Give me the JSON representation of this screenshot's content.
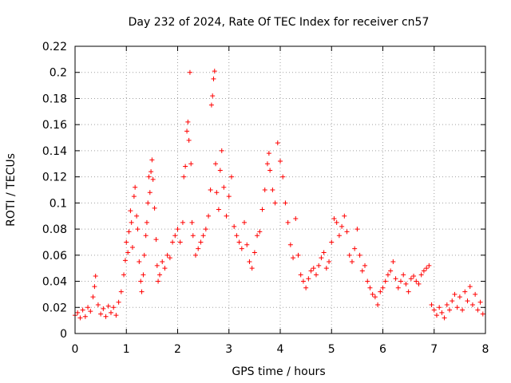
{
  "chart_data": {
    "type": "scatter",
    "title": "Day 232 of 2024, Rate Of TEC Index for receiver cn57",
    "xlabel": "GPS time / hours",
    "ylabel": "ROTI / TECUs",
    "xlim": [
      0,
      8
    ],
    "ylim": [
      0,
      0.22
    ],
    "xticks": [
      "0",
      "1",
      "2",
      "3",
      "4",
      "5",
      "6",
      "7",
      "8"
    ],
    "yticks": [
      "0",
      "0.02",
      "0.04",
      "0.06",
      "0.08",
      "0.1",
      "0.12",
      "0.14",
      "0.16",
      "0.18",
      "0.2",
      "0.22"
    ],
    "grid": true,
    "marker": "+",
    "color": "#ff0000",
    "series": [
      {
        "name": "ROTI",
        "points": [
          [
            0.0,
            0.014
          ],
          [
            0.05,
            0.016
          ],
          [
            0.1,
            0.012
          ],
          [
            0.15,
            0.018
          ],
          [
            0.2,
            0.013
          ],
          [
            0.25,
            0.02
          ],
          [
            0.3,
            0.017
          ],
          [
            0.35,
            0.028
          ],
          [
            0.38,
            0.036
          ],
          [
            0.4,
            0.044
          ],
          [
            0.45,
            0.022
          ],
          [
            0.5,
            0.015
          ],
          [
            0.55,
            0.019
          ],
          [
            0.6,
            0.013
          ],
          [
            0.65,
            0.021
          ],
          [
            0.7,
            0.016
          ],
          [
            0.75,
            0.02
          ],
          [
            0.8,
            0.014
          ],
          [
            0.85,
            0.024
          ],
          [
            0.9,
            0.032
          ],
          [
            0.95,
            0.045
          ],
          [
            0.98,
            0.056
          ],
          [
            1.0,
            0.07
          ],
          [
            1.03,
            0.062
          ],
          [
            1.05,
            0.078
          ],
          [
            1.08,
            0.094
          ],
          [
            1.1,
            0.085
          ],
          [
            1.12,
            0.066
          ],
          [
            1.15,
            0.105
          ],
          [
            1.17,
            0.112
          ],
          [
            1.2,
            0.09
          ],
          [
            1.22,
            0.08
          ],
          [
            1.25,
            0.055
          ],
          [
            1.28,
            0.04
          ],
          [
            1.3,
            0.032
          ],
          [
            1.33,
            0.045
          ],
          [
            1.35,
            0.06
          ],
          [
            1.38,
            0.075
          ],
          [
            1.4,
            0.085
          ],
          [
            1.42,
            0.1
          ],
          [
            1.44,
            0.12
          ],
          [
            1.46,
            0.108
          ],
          [
            1.48,
            0.124
          ],
          [
            1.5,
            0.133
          ],
          [
            1.52,
            0.118
          ],
          [
            1.55,
            0.096
          ],
          [
            1.58,
            0.072
          ],
          [
            1.6,
            0.052
          ],
          [
            1.62,
            0.04
          ],
          [
            1.65,
            0.045
          ],
          [
            1.7,
            0.055
          ],
          [
            1.75,
            0.05
          ],
          [
            1.8,
            0.06
          ],
          [
            1.85,
            0.058
          ],
          [
            1.9,
            0.07
          ],
          [
            1.95,
            0.075
          ],
          [
            2.0,
            0.08
          ],
          [
            2.05,
            0.07
          ],
          [
            2.1,
            0.085
          ],
          [
            2.12,
            0.12
          ],
          [
            2.15,
            0.128
          ],
          [
            2.18,
            0.155
          ],
          [
            2.2,
            0.162
          ],
          [
            2.22,
            0.148
          ],
          [
            2.24,
            0.2
          ],
          [
            2.26,
            0.13
          ],
          [
            2.28,
            0.085
          ],
          [
            2.3,
            0.075
          ],
          [
            2.35,
            0.06
          ],
          [
            2.4,
            0.065
          ],
          [
            2.45,
            0.07
          ],
          [
            2.5,
            0.075
          ],
          [
            2.55,
            0.08
          ],
          [
            2.6,
            0.09
          ],
          [
            2.64,
            0.11
          ],
          [
            2.66,
            0.175
          ],
          [
            2.68,
            0.182
          ],
          [
            2.7,
            0.195
          ],
          [
            2.72,
            0.201
          ],
          [
            2.74,
            0.13
          ],
          [
            2.76,
            0.108
          ],
          [
            2.8,
            0.095
          ],
          [
            2.83,
            0.125
          ],
          [
            2.86,
            0.14
          ],
          [
            2.9,
            0.112
          ],
          [
            2.95,
            0.09
          ],
          [
            3.0,
            0.105
          ],
          [
            3.05,
            0.12
          ],
          [
            3.1,
            0.082
          ],
          [
            3.15,
            0.075
          ],
          [
            3.2,
            0.07
          ],
          [
            3.25,
            0.065
          ],
          [
            3.3,
            0.085
          ],
          [
            3.35,
            0.068
          ],
          [
            3.4,
            0.055
          ],
          [
            3.45,
            0.05
          ],
          [
            3.5,
            0.062
          ],
          [
            3.55,
            0.075
          ],
          [
            3.6,
            0.078
          ],
          [
            3.65,
            0.095
          ],
          [
            3.7,
            0.11
          ],
          [
            3.75,
            0.13
          ],
          [
            3.78,
            0.138
          ],
          [
            3.8,
            0.125
          ],
          [
            3.85,
            0.11
          ],
          [
            3.9,
            0.1
          ],
          [
            3.95,
            0.146
          ],
          [
            4.0,
            0.132
          ],
          [
            4.05,
            0.12
          ],
          [
            4.1,
            0.1
          ],
          [
            4.15,
            0.085
          ],
          [
            4.2,
            0.068
          ],
          [
            4.25,
            0.058
          ],
          [
            4.3,
            0.088
          ],
          [
            4.35,
            0.06
          ],
          [
            4.4,
            0.045
          ],
          [
            4.45,
            0.04
          ],
          [
            4.5,
            0.035
          ],
          [
            4.55,
            0.042
          ],
          [
            4.6,
            0.048
          ],
          [
            4.65,
            0.05
          ],
          [
            4.7,
            0.045
          ],
          [
            4.75,
            0.052
          ],
          [
            4.8,
            0.058
          ],
          [
            4.85,
            0.062
          ],
          [
            4.9,
            0.05
          ],
          [
            4.95,
            0.055
          ],
          [
            5.0,
            0.07
          ],
          [
            5.05,
            0.088
          ],
          [
            5.1,
            0.085
          ],
          [
            5.15,
            0.075
          ],
          [
            5.2,
            0.082
          ],
          [
            5.25,
            0.09
          ],
          [
            5.3,
            0.078
          ],
          [
            5.35,
            0.06
          ],
          [
            5.4,
            0.055
          ],
          [
            5.45,
            0.065
          ],
          [
            5.5,
            0.08
          ],
          [
            5.55,
            0.06
          ],
          [
            5.6,
            0.048
          ],
          [
            5.65,
            0.052
          ],
          [
            5.7,
            0.04
          ],
          [
            5.75,
            0.035
          ],
          [
            5.8,
            0.03
          ],
          [
            5.85,
            0.028
          ],
          [
            5.9,
            0.022
          ],
          [
            5.95,
            0.032
          ],
          [
            6.0,
            0.035
          ],
          [
            6.05,
            0.04
          ],
          [
            6.1,
            0.045
          ],
          [
            6.15,
            0.048
          ],
          [
            6.2,
            0.055
          ],
          [
            6.25,
            0.042
          ],
          [
            6.3,
            0.035
          ],
          [
            6.35,
            0.04
          ],
          [
            6.4,
            0.045
          ],
          [
            6.45,
            0.038
          ],
          [
            6.5,
            0.032
          ],
          [
            6.55,
            0.042
          ],
          [
            6.6,
            0.044
          ],
          [
            6.65,
            0.04
          ],
          [
            6.7,
            0.038
          ],
          [
            6.75,
            0.045
          ],
          [
            6.8,
            0.048
          ],
          [
            6.85,
            0.05
          ],
          [
            6.9,
            0.052
          ],
          [
            6.95,
            0.022
          ],
          [
            7.0,
            0.018
          ],
          [
            7.05,
            0.014
          ],
          [
            7.1,
            0.02
          ],
          [
            7.15,
            0.016
          ],
          [
            7.2,
            0.012
          ],
          [
            7.25,
            0.022
          ],
          [
            7.3,
            0.018
          ],
          [
            7.35,
            0.025
          ],
          [
            7.4,
            0.03
          ],
          [
            7.45,
            0.02
          ],
          [
            7.5,
            0.028
          ],
          [
            7.55,
            0.018
          ],
          [
            7.6,
            0.032
          ],
          [
            7.65,
            0.025
          ],
          [
            7.7,
            0.036
          ],
          [
            7.75,
            0.022
          ],
          [
            7.8,
            0.03
          ],
          [
            7.85,
            0.018
          ],
          [
            7.9,
            0.024
          ],
          [
            7.95,
            0.015
          ]
        ]
      }
    ]
  }
}
